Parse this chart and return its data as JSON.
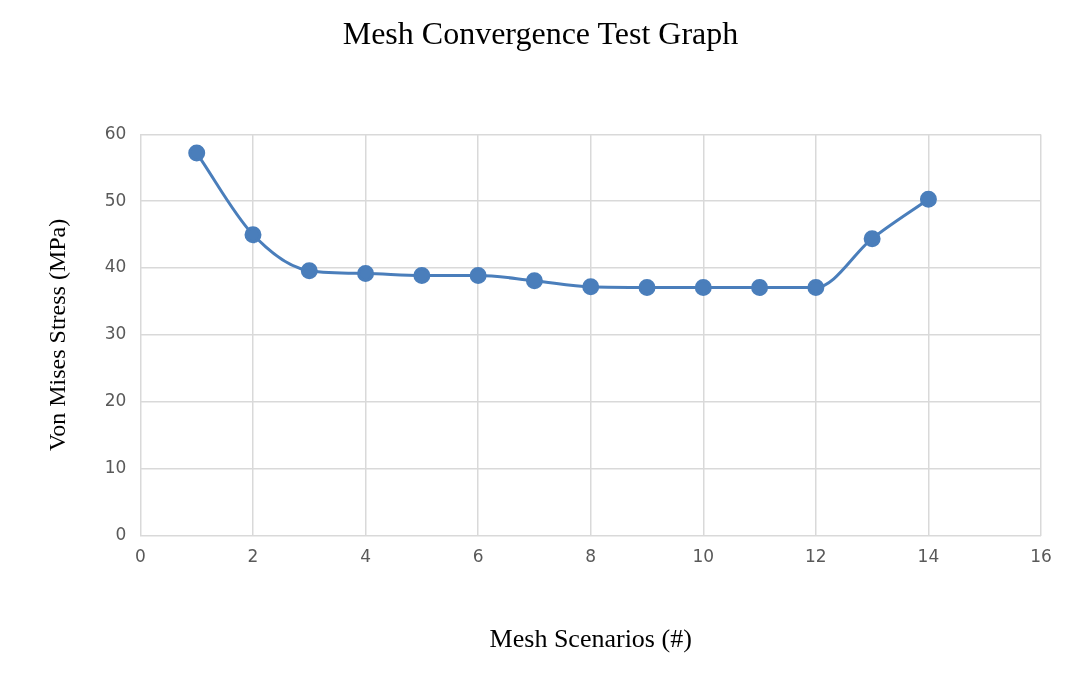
{
  "chart_data": {
    "type": "line",
    "title": "Mesh Convergence Test Graph",
    "xlabel": "Mesh Scenarios (#)",
    "ylabel": "Von Mises Stress (MPa)",
    "x": [
      1,
      2,
      3,
      4,
      5,
      6,
      7,
      8,
      9,
      10,
      11,
      12,
      13,
      14
    ],
    "series": [
      {
        "color": "#4a7ebb",
        "values": [
          57.2,
          45.0,
          39.6,
          39.2,
          38.9,
          38.9,
          38.1,
          37.2,
          37.1,
          37.1,
          37.1,
          37.1,
          44.4,
          50.3
        ]
      }
    ],
    "xlim": [
      0,
      16
    ],
    "xticks": [
      0,
      2,
      4,
      6,
      8,
      10,
      12,
      14,
      16
    ],
    "ylim": [
      0,
      60
    ],
    "yticks": [
      0,
      10,
      20,
      30,
      40,
      50,
      60
    ],
    "grid": true,
    "legend": false,
    "marker": "circle",
    "line_style": "solid"
  }
}
